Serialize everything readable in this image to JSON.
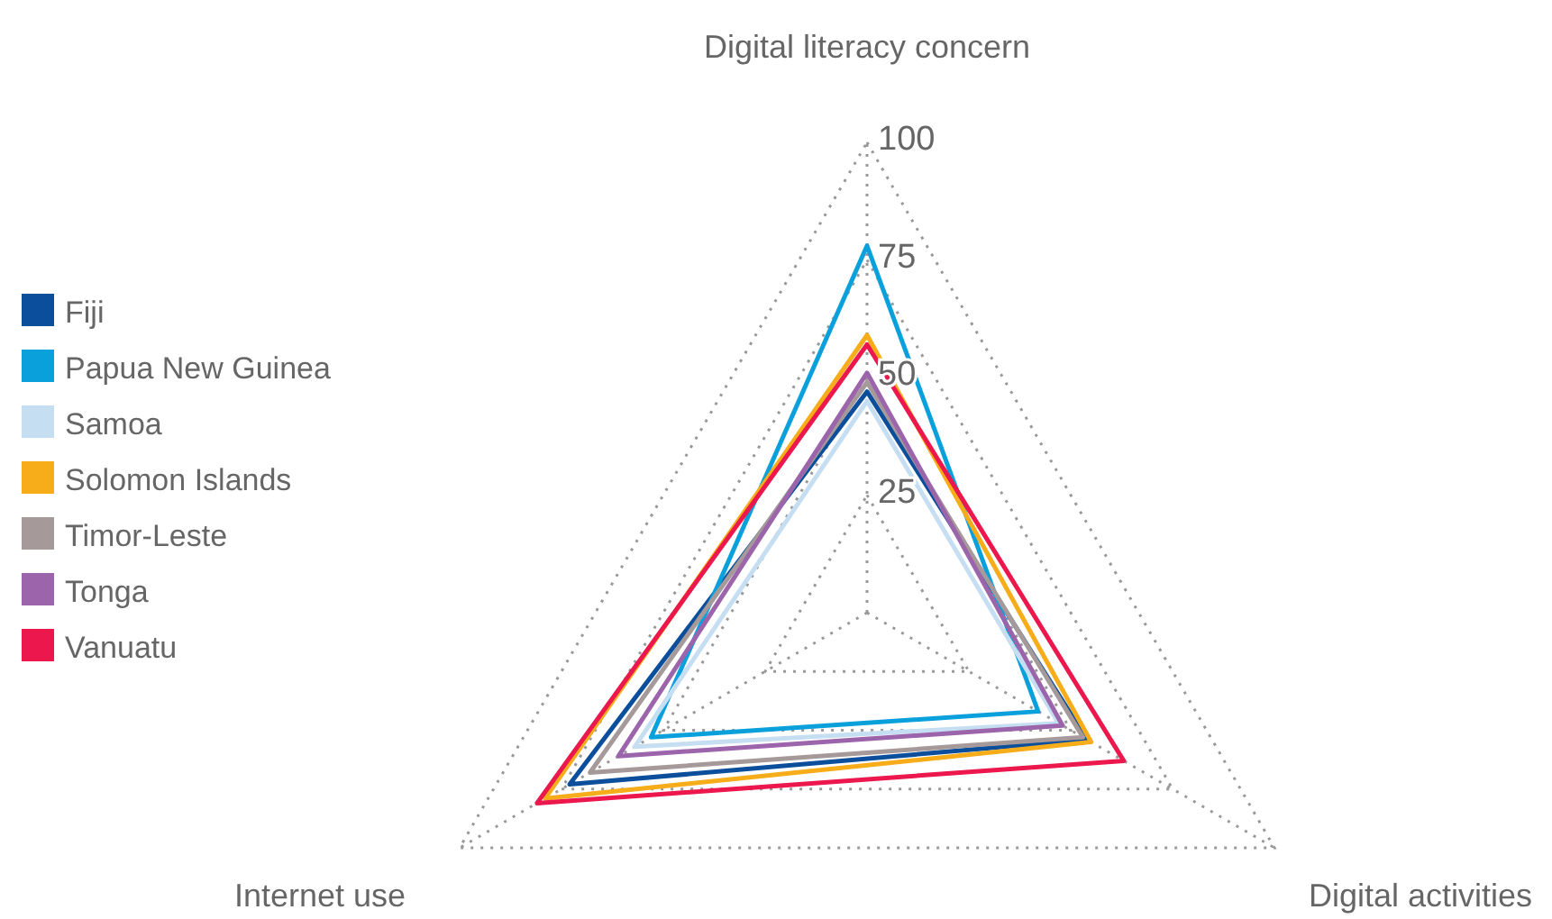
{
  "chart_data": {
    "type": "radar",
    "categories": [
      "Digital literacy concern",
      "Digital activities",
      "Internet use"
    ],
    "series": [
      {
        "name": "Fiji",
        "color": "#0b4f9c",
        "values": [
          47,
          54,
          73
        ]
      },
      {
        "name": "Papua New Guinea",
        "color": "#0aa0dc",
        "values": [
          78,
          42,
          53
        ]
      },
      {
        "name": "Samoa",
        "color": "#c6def2",
        "values": [
          45,
          47,
          57
        ]
      },
      {
        "name": "Solomon Islands",
        "color": "#f7ac19",
        "values": [
          59,
          55,
          79
        ]
      },
      {
        "name": "Timor-Leste",
        "color": "#a59a99",
        "values": [
          49,
          53,
          68
        ]
      },
      {
        "name": "Tonga",
        "color": "#9b64ab",
        "values": [
          51,
          48,
          61
        ]
      },
      {
        "name": "Vanuatu",
        "color": "#ec174c",
        "values": [
          57,
          63,
          81
        ]
      }
    ],
    "ylim": [
      0,
      100
    ],
    "yticks": [
      25,
      50,
      75,
      100
    ],
    "grid": true,
    "legend": "left",
    "marker": "none",
    "line_style": "solid"
  }
}
